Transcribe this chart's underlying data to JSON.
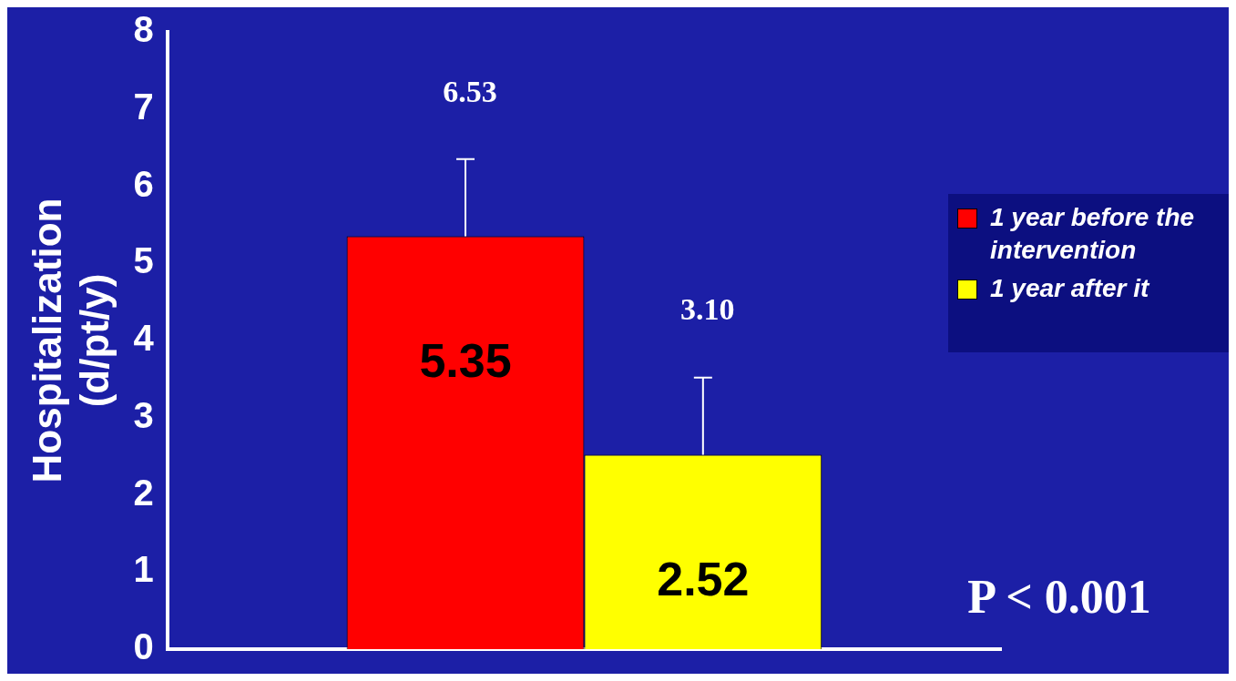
{
  "chart_data": {
    "type": "bar",
    "categories": [
      null
    ],
    "ylabel": "Hospitalization\n(d/pt/y)",
    "ylim": [
      0,
      8
    ],
    "yticks": [
      0,
      1,
      2,
      3,
      4,
      5,
      6,
      7,
      8
    ],
    "grid": false,
    "legend": "right",
    "data_labels": true,
    "series": [
      {
        "name": "1 year before the intervention",
        "color": "#ff0000",
        "values": [
          5.35
        ],
        "errors": [
          [
            5.35,
            6.35
          ]
        ]
      },
      {
        "name": "1 year after it",
        "color": "#ffff00",
        "values": [
          2.52
        ],
        "errors": [
          [
            2.52,
            3.52
          ]
        ]
      }
    ],
    "annotations": [
      "6.53",
      "3.10",
      "P < 0.001"
    ]
  }
}
